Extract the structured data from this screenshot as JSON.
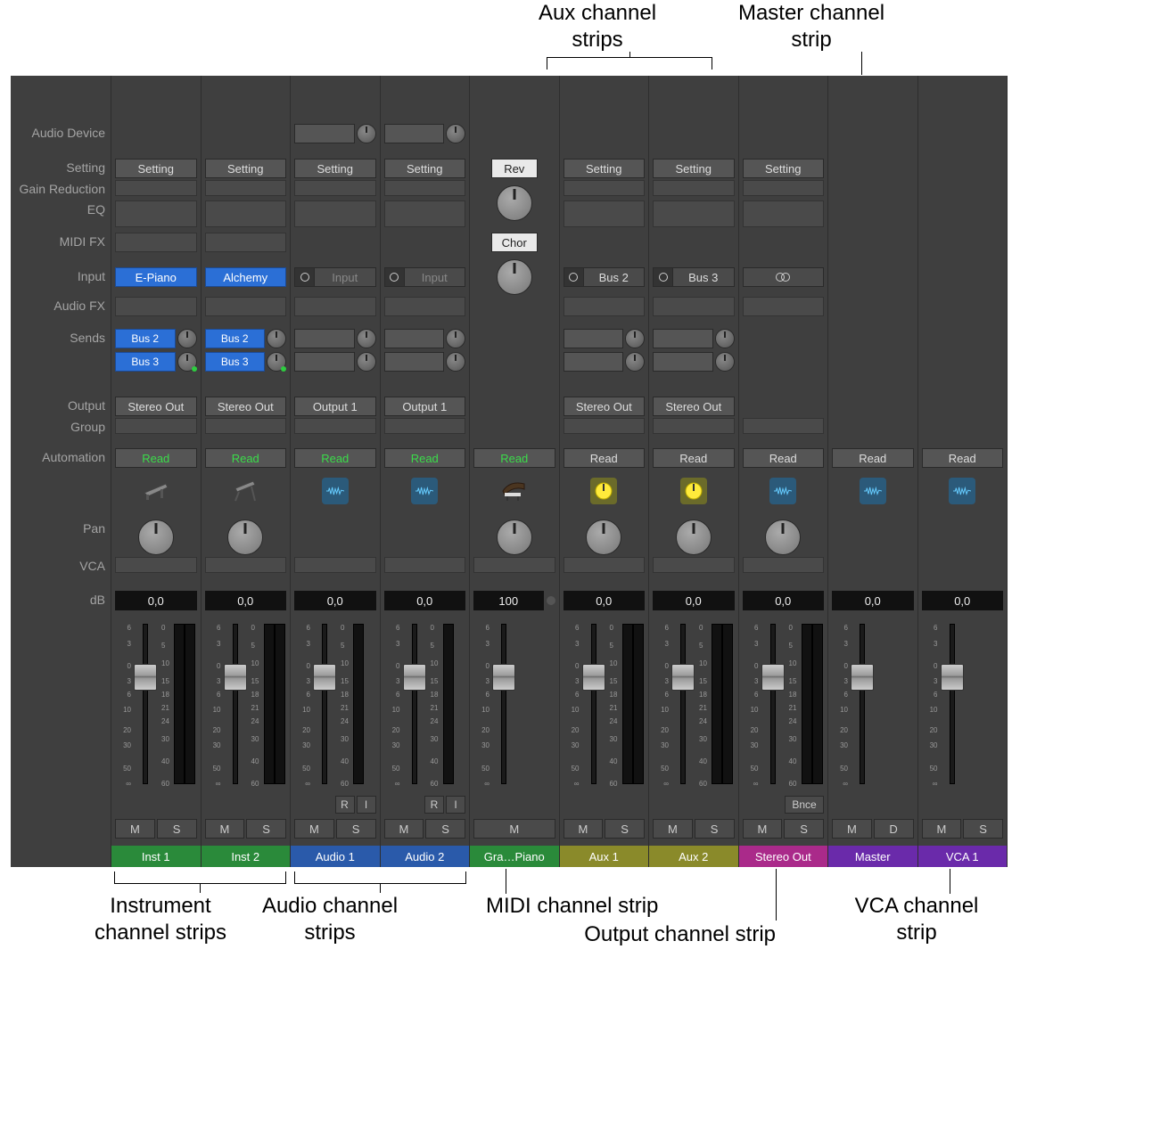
{
  "callouts": {
    "aux_top": "Aux channel\nstrips",
    "master_top": "Master channel\nstrip",
    "instrument_bottom": "Instrument\nchannel strips",
    "audio_bottom": "Audio channel\nstrips",
    "midi_bottom": "MIDI channel strip",
    "output_bottom": "Output channel strip",
    "vca_bottom": "VCA channel\nstrip"
  },
  "row_labels": {
    "audio_device": "Audio Device",
    "setting": "Setting",
    "gain_reduction": "Gain Reduction",
    "eq": "EQ",
    "midi_fx": "MIDI FX",
    "input": "Input",
    "audio_fx": "Audio FX",
    "sends": "Sends",
    "output": "Output",
    "group": "Group",
    "automation": "Automation",
    "pan": "Pan",
    "vca": "VCA",
    "db": "dB"
  },
  "row_positions": {
    "audio_device": 54,
    "setting": 93,
    "gain_reduction": 117,
    "eq": 140,
    "midi_fx": 176,
    "input": 215,
    "audio_fx": 248,
    "sends": 284,
    "sends2": 310,
    "output": 360,
    "group": 384,
    "automation": 418,
    "icon": 448,
    "pan": 498,
    "vca": 540,
    "db": 578,
    "fader": 610,
    "ri": 808,
    "ms": 834,
    "name": 864
  },
  "fader_scale_left": [
    "6",
    "3",
    "0",
    "3",
    "6",
    "10",
    "20",
    "30",
    "50",
    "∞"
  ],
  "meter_scale": [
    "0",
    "5",
    "10",
    "15",
    "18",
    "21",
    "24",
    "30",
    "40",
    "60"
  ],
  "common": {
    "setting_label": "Setting",
    "read_label": "Read",
    "mute": "M",
    "solo": "S",
    "dim": "D",
    "rec": "R",
    "input_mon": "I",
    "bnce": "Bnce",
    "input_placeholder": "Input"
  },
  "strips": [
    {
      "id": "inst1",
      "name": "Inst 1",
      "color": "green",
      "type": "instrument",
      "setting": "Setting",
      "input": "E-Piano",
      "input_style": "blue",
      "sends": [
        {
          "label": "Bus 2",
          "dot": false
        },
        {
          "label": "Bus 3",
          "dot": true
        }
      ],
      "output": "Stereo Out",
      "automation": "Read",
      "auto_color": "green",
      "icon": "epiano",
      "pan": true,
      "db": "0,0",
      "meters": 2,
      "ms": [
        "M",
        "S"
      ]
    },
    {
      "id": "inst2",
      "name": "Inst 2",
      "color": "green",
      "type": "instrument",
      "setting": "Setting",
      "input": "Alchemy",
      "input_style": "blue",
      "sends": [
        {
          "label": "Bus 2",
          "dot": false
        },
        {
          "label": "Bus 3",
          "dot": true
        }
      ],
      "output": "Stereo Out",
      "automation": "Read",
      "auto_color": "green",
      "icon": "synth",
      "pan": true,
      "db": "0,0",
      "meters": 2,
      "ms": [
        "M",
        "S"
      ]
    },
    {
      "id": "audio1",
      "name": "Audio 1",
      "color": "blue",
      "type": "audio",
      "setting": "Setting",
      "audio_device": true,
      "input": "Input",
      "input_style": "io-mono",
      "sends_empty": 2,
      "output": "Output 1",
      "automation": "Read",
      "auto_color": "green",
      "icon": "waveform",
      "pan": false,
      "db": "0,0",
      "meters": 1,
      "ri": true,
      "ms": [
        "M",
        "S"
      ]
    },
    {
      "id": "audio2",
      "name": "Audio 2",
      "color": "blue",
      "type": "audio",
      "setting": "Setting",
      "audio_device": true,
      "input": "Input",
      "input_style": "io-mono",
      "sends_empty": 2,
      "output": "Output 1",
      "automation": "Read",
      "auto_color": "green",
      "icon": "waveform",
      "pan": false,
      "db": "0,0",
      "meters": 1,
      "ri": true,
      "ms": [
        "M",
        "S"
      ]
    },
    {
      "id": "midi",
      "name": "Gra…Piano",
      "color": "green",
      "type": "midi",
      "setting": "Rev",
      "setting_style": "light",
      "chor": "Chor",
      "big_knobs": true,
      "automation": "Read",
      "auto_color": "green",
      "icon": "piano",
      "pan": true,
      "db": "100",
      "db_dot": true,
      "meters": 0,
      "ms": [
        "M"
      ]
    },
    {
      "id": "aux1",
      "name": "Aux 1",
      "color": "olive",
      "type": "aux",
      "setting": "Setting",
      "input": "Bus 2",
      "input_style": "io-mono-label",
      "sends_empty": 2,
      "output": "Stereo Out",
      "automation": "Read",
      "auto_color": "grey",
      "icon": "aux",
      "pan": true,
      "db": "0,0",
      "meters": 2,
      "ms": [
        "M",
        "S"
      ]
    },
    {
      "id": "aux2",
      "name": "Aux 2",
      "color": "olive",
      "type": "aux",
      "setting": "Setting",
      "input": "Bus 3",
      "input_style": "io-mono-label",
      "sends_empty": 2,
      "output": "Stereo Out",
      "automation": "Read",
      "auto_color": "grey",
      "icon": "aux",
      "pan": true,
      "db": "0,0",
      "meters": 2,
      "ms": [
        "M",
        "S"
      ]
    },
    {
      "id": "stereoout",
      "name": "Stereo Out",
      "color": "magenta",
      "type": "output",
      "setting": "Setting",
      "input": "",
      "input_style": "io-stereo",
      "automation": "Read",
      "auto_color": "grey",
      "icon": "waveform",
      "pan": true,
      "db": "0,0",
      "meters": 2,
      "bnce": true,
      "ms": [
        "M",
        "S"
      ]
    },
    {
      "id": "master",
      "name": "Master",
      "color": "purple",
      "type": "master",
      "automation": "Read",
      "auto_color": "grey",
      "icon": "waveform",
      "pan": false,
      "db": "0,0",
      "meters": 0,
      "ms": [
        "M",
        "D"
      ]
    },
    {
      "id": "vca1",
      "name": "VCA 1",
      "color": "purple",
      "type": "vca",
      "automation": "Read",
      "auto_color": "grey",
      "icon": "waveform",
      "pan": false,
      "db": "0,0",
      "meters": 0,
      "ms": [
        "M",
        "S"
      ]
    }
  ],
  "colors": {
    "panel_bg": "#3f3f3f",
    "slot_bg": "#555",
    "blue": "#2b6fd6",
    "green_text": "#3bdc4a",
    "name_green": "#2a8a3a",
    "name_blue": "#2a5aaa",
    "name_olive": "#8a8a2a",
    "name_magenta": "#aa2a8a",
    "name_purple": "#6a2aaa"
  }
}
